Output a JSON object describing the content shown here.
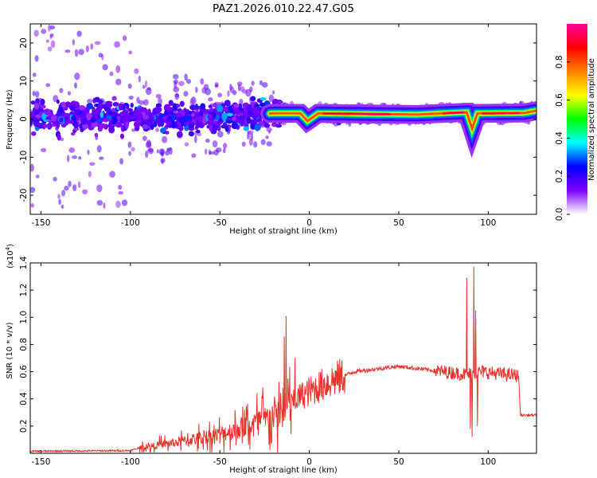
{
  "title": "PAZ1.2026.010.22.47.G05",
  "charts": {
    "spectrogram": {
      "type": "heatmap",
      "xlabel": "Height of straight line (km)",
      "ylabel": "Frequency (Hz)",
      "xlim": [
        -156,
        127
      ],
      "ylim": [
        -25,
        25
      ],
      "xticks": [
        -150,
        -100,
        -50,
        0,
        50,
        100
      ],
      "yticks": [
        20,
        10,
        0,
        -10,
        -20
      ],
      "ridge": [
        [
          -156,
          0.5
        ],
        [
          -100,
          0.5
        ],
        [
          -60,
          0.3
        ],
        [
          -20,
          1.5
        ],
        [
          -5,
          1.5
        ],
        [
          -1,
          -0.5
        ],
        [
          5,
          1.5
        ],
        [
          60,
          1.2
        ],
        [
          88,
          1.8
        ],
        [
          91,
          -2.5
        ],
        [
          94,
          1.5
        ],
        [
          120,
          1.6
        ],
        [
          127,
          2.2
        ]
      ]
    },
    "colorbar": {
      "label": "Normalized spectral amplitude",
      "ticks": [
        "0.0",
        "0.2",
        "0.4",
        "0.6",
        "0.8"
      ],
      "range": [
        0,
        1
      ],
      "colors": [
        "#ffffff",
        "#7f00ff",
        "#0000ff",
        "#00ffff",
        "#00ff00",
        "#ffff00",
        "#ff8000",
        "#ff0000",
        "#ff00a0"
      ]
    },
    "snr": {
      "type": "line",
      "xlabel": "Height of straight line (km)",
      "ylabel": "SNR (10 * v/v)",
      "multiplier": "(x10",
      "multiplier_exp": "4",
      "multiplier_close": ")",
      "xlim": [
        -156,
        127
      ],
      "ylim": [
        0,
        1.4
      ],
      "xticks": [
        -150,
        -100,
        -50,
        0,
        50,
        100
      ],
      "yticks": [
        "0.2",
        "0.4",
        "0.6",
        "0.8",
        "1.0",
        "1.2",
        "1.4"
      ],
      "color": "#e8322c",
      "series_anchor": [
        [
          -156,
          0.015
        ],
        [
          -100,
          0.02
        ],
        [
          -95,
          0.04
        ],
        [
          -75,
          0.08
        ],
        [
          -50,
          0.14
        ],
        [
          -30,
          0.22
        ],
        [
          -15,
          0.3
        ],
        [
          -5,
          0.42
        ],
        [
          10,
          0.52
        ],
        [
          25,
          0.6
        ],
        [
          50,
          0.64
        ],
        [
          75,
          0.6
        ],
        [
          88,
          0.58
        ],
        [
          96,
          0.6
        ],
        [
          117,
          0.57
        ],
        [
          118,
          0.28
        ],
        [
          127,
          0.28
        ]
      ],
      "spikes": [
        [
          -13,
          1.01
        ],
        [
          -14,
          0.86
        ],
        [
          -12,
          0.55
        ],
        [
          -8,
          0.7
        ],
        [
          88,
          1.29
        ],
        [
          92,
          1.37
        ],
        [
          93,
          1.05
        ],
        [
          90,
          0.18
        ],
        [
          91,
          0.12
        ],
        [
          94,
          0.2
        ]
      ]
    }
  }
}
